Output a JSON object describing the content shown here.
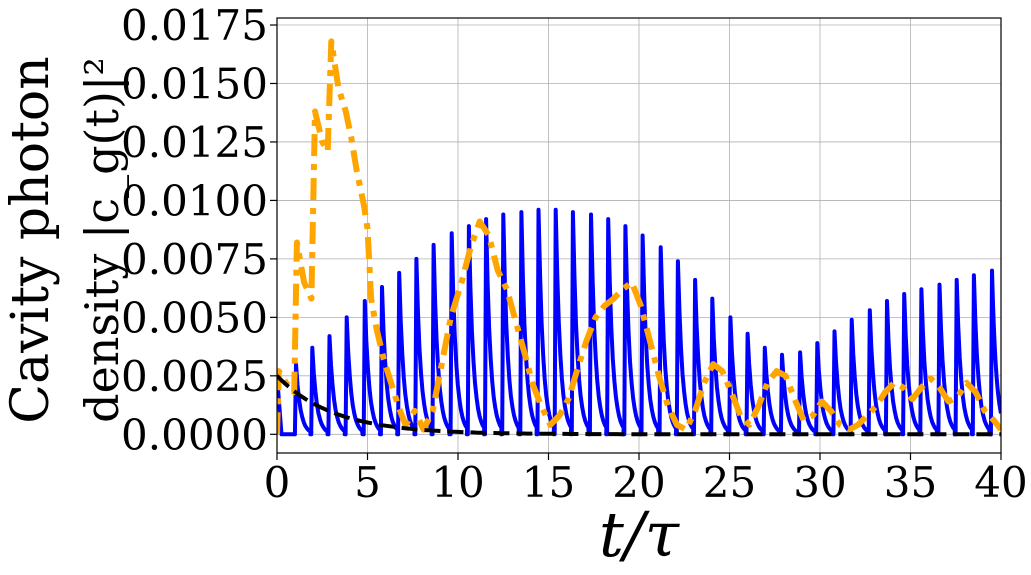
{
  "chart_data": {
    "type": "line",
    "xlabel": "t/τ",
    "ylabel_line1": "Cavity photon",
    "ylabel_line2": "density |c_g(t)|²",
    "xlim": [
      0,
      40
    ],
    "ylim": [
      -0.0008,
      0.0178
    ],
    "grid": true,
    "x_ticks": [
      0,
      5,
      10,
      15,
      20,
      25,
      30,
      35,
      40
    ],
    "x_tick_labels": [
      "0",
      "5",
      "10",
      "15",
      "20",
      "25",
      "30",
      "35",
      "40"
    ],
    "y_ticks": [
      0.0,
      0.0025,
      0.005,
      0.0075,
      0.01,
      0.0125,
      0.015,
      0.0175
    ],
    "y_tick_labels": [
      "0.0000",
      "0.0025",
      "0.0050",
      "0.0075",
      "0.0100",
      "0.0125",
      "0.0150",
      "0.0175"
    ],
    "series": [
      {
        "style": "solid",
        "color": "#0000ff",
        "kind": "pulse_train",
        "start": 0.0,
        "start_value": 0.0025,
        "peaks": [
          [
            1.05,
            0.003
          ],
          [
            1.95,
            0.0037
          ],
          [
            2.9,
            0.0042
          ],
          [
            3.85,
            0.005
          ],
          [
            4.85,
            0.0057
          ],
          [
            5.8,
            0.0063
          ],
          [
            6.75,
            0.0069
          ],
          [
            7.7,
            0.0075
          ],
          [
            8.65,
            0.0081
          ],
          [
            9.65,
            0.0086
          ],
          [
            10.6,
            0.0089
          ],
          [
            11.55,
            0.0092
          ],
          [
            12.5,
            0.0094
          ],
          [
            13.5,
            0.0095
          ],
          [
            14.45,
            0.0096
          ],
          [
            15.4,
            0.0096
          ],
          [
            16.35,
            0.0095
          ],
          [
            17.35,
            0.0094
          ],
          [
            18.3,
            0.0092
          ],
          [
            19.25,
            0.0089
          ],
          [
            20.2,
            0.0085
          ],
          [
            21.2,
            0.008
          ],
          [
            22.15,
            0.0074
          ],
          [
            23.1,
            0.0066
          ],
          [
            24.05,
            0.0058
          ],
          [
            25.05,
            0.005
          ],
          [
            26.0,
            0.0043
          ],
          [
            26.95,
            0.0037
          ],
          [
            27.9,
            0.0034
          ],
          [
            28.9,
            0.0035
          ],
          [
            29.85,
            0.0039
          ],
          [
            30.8,
            0.0044
          ],
          [
            31.75,
            0.0049
          ],
          [
            32.75,
            0.0053
          ],
          [
            33.7,
            0.0057
          ],
          [
            34.65,
            0.006
          ],
          [
            35.6,
            0.0062
          ],
          [
            36.6,
            0.0064
          ],
          [
            37.55,
            0.0066
          ],
          [
            38.5,
            0.0068
          ],
          [
            39.5,
            0.007
          ]
        ]
      },
      {
        "style": "dashdot",
        "color": "#ffa500",
        "points": [
          [
            0.0,
            0.0
          ],
          [
            0.1,
            0.0027
          ],
          [
            0.5,
            0.0022
          ],
          [
            0.95,
            0.0018
          ],
          [
            1.1,
            0.0082
          ],
          [
            1.5,
            0.0065
          ],
          [
            1.9,
            0.0058
          ],
          [
            2.1,
            0.0138
          ],
          [
            2.5,
            0.0125
          ],
          [
            2.8,
            0.0121
          ],
          [
            3.0,
            0.0168
          ],
          [
            3.4,
            0.0148
          ],
          [
            3.8,
            0.0138
          ],
          [
            4.1,
            0.0127
          ],
          [
            4.4,
            0.0113
          ],
          [
            4.8,
            0.0098
          ],
          [
            5.0,
            0.0088
          ],
          [
            5.2,
            0.0058
          ],
          [
            5.5,
            0.0045
          ],
          [
            5.9,
            0.0032
          ],
          [
            6.3,
            0.0022
          ],
          [
            6.7,
            0.0012
          ],
          [
            7.1,
            0.0004
          ],
          [
            7.6,
            0.001
          ],
          [
            8.1,
            0.0002
          ],
          [
            8.6,
            0.001
          ],
          [
            9.1,
            0.003
          ],
          [
            9.6,
            0.005
          ],
          [
            10.2,
            0.0065
          ],
          [
            10.7,
            0.008
          ],
          [
            11.2,
            0.0091
          ],
          [
            11.7,
            0.0085
          ],
          [
            12.2,
            0.007
          ],
          [
            12.7,
            0.0062
          ],
          [
            13.2,
            0.0048
          ],
          [
            13.7,
            0.0034
          ],
          [
            14.1,
            0.0022
          ],
          [
            14.6,
            0.0012
          ],
          [
            15.1,
            0.0004
          ],
          [
            15.6,
            0.0008
          ],
          [
            16.1,
            0.0015
          ],
          [
            16.6,
            0.0028
          ],
          [
            17.1,
            0.004
          ],
          [
            17.6,
            0.005
          ],
          [
            18.1,
            0.0055
          ],
          [
            18.6,
            0.0058
          ],
          [
            19.1,
            0.0062
          ],
          [
            19.6,
            0.0065
          ],
          [
            20.1,
            0.0055
          ],
          [
            20.6,
            0.004
          ],
          [
            21.1,
            0.0025
          ],
          [
            21.6,
            0.0012
          ],
          [
            22.1,
            0.0004
          ],
          [
            22.6,
            0.0002
          ],
          [
            23.1,
            0.001
          ],
          [
            23.6,
            0.0022
          ],
          [
            24.1,
            0.003
          ],
          [
            24.6,
            0.0027
          ],
          [
            25.1,
            0.0018
          ],
          [
            25.6,
            0.0008
          ],
          [
            26.1,
            0.0004
          ],
          [
            26.6,
            0.0012
          ],
          [
            27.1,
            0.0022
          ],
          [
            27.6,
            0.0027
          ],
          [
            28.1,
            0.0025
          ],
          [
            28.6,
            0.0015
          ],
          [
            29.1,
            0.0006
          ],
          [
            29.6,
            0.0008
          ],
          [
            30.1,
            0.0014
          ],
          [
            30.6,
            0.001
          ],
          [
            31.1,
            0.0004
          ],
          [
            31.6,
            0.0002
          ],
          [
            32.1,
            0.0004
          ],
          [
            32.6,
            0.0008
          ],
          [
            33.1,
            0.0012
          ],
          [
            33.6,
            0.0018
          ],
          [
            34.1,
            0.0022
          ],
          [
            34.6,
            0.002
          ],
          [
            35.1,
            0.0015
          ],
          [
            35.6,
            0.002
          ],
          [
            36.1,
            0.0024
          ],
          [
            36.6,
            0.002
          ],
          [
            37.1,
            0.0014
          ],
          [
            37.6,
            0.0016
          ],
          [
            38.1,
            0.0022
          ],
          [
            38.6,
            0.0018
          ],
          [
            39.1,
            0.001
          ],
          [
            39.6,
            0.0006
          ],
          [
            40.0,
            0.0002
          ]
        ]
      },
      {
        "style": "dashed",
        "color": "#000000",
        "kind": "decay",
        "amplitude": 0.0025,
        "rate": 0.32,
        "x_range": [
          0,
          40
        ]
      }
    ]
  }
}
